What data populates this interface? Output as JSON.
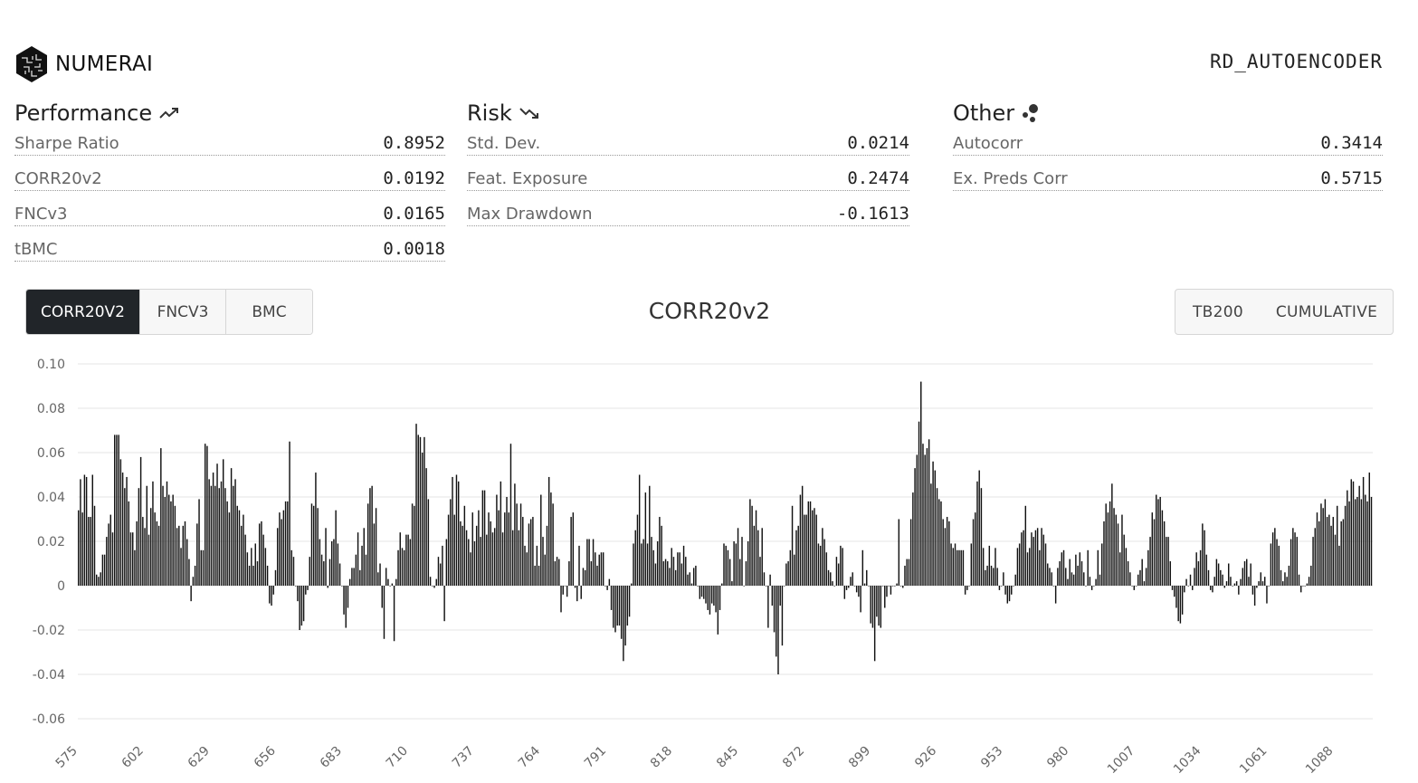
{
  "header": {
    "logo_text": "NUMERAI",
    "model_name": "RD_AUTOENCODER"
  },
  "sections": {
    "performance": {
      "title": "Performance",
      "icon": "trending-up-icon",
      "metrics": [
        {
          "label": "Sharpe Ratio",
          "value": "0.8952"
        },
        {
          "label": "CORR20v2",
          "value": "0.0192"
        },
        {
          "label": "FNCv3",
          "value": "0.0165"
        },
        {
          "label": "tBMC",
          "value": "0.0018"
        }
      ]
    },
    "risk": {
      "title": "Risk",
      "icon": "trending-down-icon",
      "metrics": [
        {
          "label": "Std. Dev.",
          "value": "0.0214"
        },
        {
          "label": "Feat. Exposure",
          "value": "0.2474"
        },
        {
          "label": "Max Drawdown",
          "value": "-0.1613"
        }
      ]
    },
    "other": {
      "title": "Other",
      "icon": "scatter-dots-icon",
      "metrics": [
        {
          "label": "Autocorr",
          "value": "0.3414"
        },
        {
          "label": "Ex. Preds Corr",
          "value": "0.5715"
        }
      ]
    }
  },
  "tabs": [
    {
      "label": "CORR20V2",
      "active": true
    },
    {
      "label": "FNCV3",
      "active": false
    },
    {
      "label": "BMC",
      "active": false
    }
  ],
  "toggles": [
    {
      "label": "TB200"
    },
    {
      "label": "CUMULATIVE"
    }
  ],
  "colors": {
    "bar": "#111111",
    "active_tab_bg": "#212529",
    "grid": "#e6e6e6"
  },
  "chart_data": {
    "type": "bar",
    "title": "CORR20v2",
    "x_start": 575,
    "x_end": 1104,
    "x_tick_labels": [
      "575",
      "602",
      "629",
      "656",
      "683",
      "710",
      "737",
      "764",
      "791",
      "818",
      "845",
      "872",
      "899",
      "926",
      "953",
      "980",
      "1007",
      "1034",
      "1061",
      "1088"
    ],
    "y_tick_labels": [
      "0.10",
      "0.08",
      "0.06",
      "0.04",
      "0.02",
      "0",
      "-0.02",
      "-0.04",
      "-0.06"
    ],
    "ylim": [
      -0.06,
      0.1
    ],
    "grid": true,
    "values": [
      0.034,
      0.048,
      0.033,
      0.05,
      0.049,
      0.031,
      0.031,
      0.05,
      0.036,
      0.005,
      0.004,
      0.006,
      0.014,
      0.014,
      0.022,
      0.028,
      0.032,
      0.024,
      0.068,
      0.068,
      0.068,
      0.057,
      0.051,
      0.044,
      0.049,
      0.038,
      0.024,
      0.024,
      0.016,
      0.029,
      0.044,
      0.058,
      0.031,
      0.026,
      0.045,
      0.023,
      0.035,
      0.047,
      0.033,
      0.029,
      0.027,
      0.062,
      0.045,
      0.04,
      0.047,
      0.041,
      0.038,
      0.041,
      0.036,
      0.026,
      0.027,
      0.017,
      0.027,
      0.029,
      0.021,
      0.012,
      -0.007,
      0.004,
      0.009,
      0.028,
      0.039,
      0.016,
      0.016,
      0.064,
      0.063,
      0.048,
      0.045,
      0.051,
      0.045,
      0.055,
      0.044,
      0.047,
      0.057,
      0.044,
      0.038,
      0.033,
      0.053,
      0.045,
      0.048,
      0.036,
      0.034,
      0.027,
      0.032,
      0.023,
      0.015,
      0.009,
      0.017,
      0.009,
      0.019,
      0.011,
      0.028,
      0.029,
      0.023,
      0.017,
      0.009,
      -0.008,
      -0.009,
      -0.004,
      0.007,
      0.026,
      0.033,
      0.03,
      0.034,
      0.038,
      0.038,
      0.065,
      0.016,
      0.013,
      0.0,
      -0.007,
      -0.02,
      -0.018,
      -0.016,
      -0.004,
      -0.002,
      0.013,
      0.037,
      0.036,
      0.051,
      0.035,
      0.021,
      0.014,
      0.011,
      0.026,
      -0.001,
      0.012,
      0.02,
      0.021,
      0.034,
      0.019,
      0.01,
      0.0,
      -0.013,
      -0.019,
      -0.01,
      0.003,
      0.008,
      0.008,
      0.014,
      0.024,
      0.007,
      0.018,
      0.026,
      0.014,
      0.037,
      0.044,
      0.045,
      0.028,
      0.035,
      0.006,
      0.01,
      -0.01,
      -0.024,
      0.008,
      0.003,
      0.0,
      0.001,
      -0.025,
      0.003,
      0.016,
      0.024,
      0.017,
      0.016,
      0.023,
      0.023,
      0.021,
      0.037,
      0.036,
      0.073,
      0.068,
      0.067,
      0.06,
      0.067,
      0.053,
      0.039,
      0.004,
      0.0,
      -0.001,
      0.003,
      0.013,
      0.01,
      0.018,
      -0.016,
      0.021,
      0.032,
      0.039,
      0.049,
      0.032,
      0.05,
      0.047,
      0.029,
      0.027,
      0.036,
      0.025,
      0.021,
      0.015,
      0.033,
      0.02,
      0.027,
      0.034,
      0.022,
      0.043,
      0.043,
      0.023,
      0.033,
      0.029,
      0.024,
      0.026,
      0.041,
      0.034,
      0.047,
      0.024,
      0.033,
      0.04,
      0.033,
      0.064,
      0.025,
      0.046,
      0.037,
      0.025,
      0.037,
      0.031,
      0.018,
      0.015,
      0.028,
      0.03,
      0.031,
      0.009,
      0.018,
      0.009,
      0.041,
      0.022,
      0.014,
      0.027,
      0.049,
      0.042,
      0.037,
      0.011,
      0.013,
      0.012,
      -0.012,
      -0.004,
      0.0,
      -0.005,
      0.011,
      0.031,
      0.033,
      -0.001,
      -0.007,
      0.018,
      -0.006,
      0.008,
      0.007,
      0.021,
      0.021,
      0.011,
      0.021,
      0.015,
      0.009,
      0.014,
      0.015,
      0.015,
      0.0,
      -0.002,
      0.003,
      -0.011,
      -0.019,
      -0.021,
      -0.018,
      -0.018,
      -0.024,
      -0.034,
      -0.027,
      -0.018,
      -0.014,
      0.001,
      0.019,
      0.025,
      0.032,
      0.05,
      0.019,
      0.021,
      0.042,
      0.019,
      0.045,
      0.022,
      0.016,
      0.01,
      0.02,
      0.031,
      0.027,
      0.011,
      0.012,
      0.011,
      0.008,
      0.017,
      0.013,
      0.007,
      0.015,
      0.015,
      0.01,
      0.018,
      0.013,
      0.005,
      0.006,
      0.001,
      0.008,
      0.009,
      0.0,
      -0.006,
      -0.005,
      -0.006,
      -0.008,
      -0.011,
      -0.013,
      -0.008,
      -0.009,
      -0.012,
      -0.022,
      -0.011,
      0.001,
      0.019,
      0.018,
      0.016,
      0.012,
      0.002,
      0.02,
      0.019,
      0.026,
      0.012,
      0.022,
      0.0,
      0.011,
      0.02,
      0.039,
      0.036,
      0.027,
      0.034,
      0.025,
      0.013,
      0.026,
      0.006,
      0.0,
      -0.019,
      0.005,
      -0.009,
      -0.021,
      -0.032,
      -0.04,
      -0.009,
      -0.027,
      0.0,
      0.01,
      0.011,
      0.016,
      0.036,
      0.014,
      0.025,
      0.027,
      0.041,
      0.045,
      0.032,
      0.032,
      0.038,
      0.038,
      0.034,
      0.035,
      0.032,
      0.019,
      0.018,
      0.026,
      0.021,
      0.015,
      0.007,
      0.006,
      0.002,
      0.0,
      0.013,
      0.01,
      0.018,
      0.017,
      -0.006,
      -0.002,
      -0.001,
      0.004,
      0.006,
      0.0,
      -0.003,
      -0.005,
      -0.012,
      0.016,
      0.001,
      0.007,
      0.0,
      -0.017,
      -0.019,
      -0.034,
      -0.014,
      -0.018,
      -0.019,
      0.0,
      -0.01,
      -0.005,
      0.0,
      -0.004,
      0.0,
      0.0,
      0.001,
      0.03,
      0.0,
      -0.001,
      0.009,
      0.012,
      0.012,
      0.03,
      0.042,
      0.053,
      0.059,
      0.074,
      0.092,
      0.064,
      0.059,
      0.062,
      0.066,
      0.046,
      0.056,
      0.052,
      0.044,
      0.039,
      0.038,
      0.03,
      0.026,
      0.031,
      0.029,
      0.019,
      0.017,
      0.019,
      0.016,
      0.016,
      0.016,
      0.016,
      -0.004,
      -0.002,
      0.0,
      0.019,
      0.03,
      0.033,
      0.047,
      0.052,
      0.044,
      0.017,
      0.007,
      0.009,
      0.018,
      0.009,
      0.008,
      0.017,
      0.008,
      -0.002,
      0.0,
      0.006,
      -0.004,
      -0.008,
      -0.007,
      -0.004,
      0.0,
      0.005,
      0.017,
      0.019,
      0.024,
      0.025,
      0.036,
      0.015,
      0.017,
      0.024,
      0.022,
      0.025,
      0.026,
      0.016,
      0.026,
      0.023,
      0.019,
      0.01,
      0.008,
      0.006,
      0.0,
      -0.008,
      0.008,
      0.011,
      0.015,
      0.016,
      0.008,
      0.003,
      0.012,
      0.006,
      0.005,
      0.014,
      0.009,
      0.015,
      0.011,
      0.006,
      0.0,
      0.016,
      0.004,
      -0.002,
      0.0,
      0.003,
      0.016,
      0.005,
      0.019,
      0.029,
      0.037,
      0.033,
      0.038,
      0.046,
      0.035,
      0.032,
      0.028,
      0.015,
      0.032,
      0.023,
      0.017,
      0.011,
      0.006,
      0.0,
      -0.002,
      0.0,
      0.005,
      0.007,
      0.012,
      0.002,
      0.008,
      0.016,
      0.022,
      0.033,
      0.03,
      0.041,
      0.039,
      0.04,
      0.034,
      0.029,
      0.022,
      0.022,
      0.011,
      -0.002,
      -0.005,
      -0.01,
      -0.016,
      -0.017,
      -0.013,
      -0.003,
      0.003,
      0.0,
      0.005,
      -0.002,
      0.008,
      0.015,
      0.011,
      0.016,
      0.028,
      0.025,
      0.014,
      0.007,
      -0.002,
      -0.003,
      0.004,
      0.012,
      0.01,
      0.007,
      0.005,
      -0.001,
      0.002,
      0.01,
      0.004,
      0.0,
      0.001,
      0.002,
      -0.004,
      0.003,
      0.008,
      0.011,
      0.012,
      0.004,
      0.01,
      -0.004,
      -0.009,
      -0.001,
      0.002,
      0.006,
      0.002,
      0.004,
      -0.008,
      0.0,
      0.019,
      0.024,
      0.026,
      0.021,
      0.018,
      0.007,
      0.002,
      0.006,
      0.004,
      0.009,
      0.021,
      0.026,
      0.024,
      0.022,
      0.005,
      -0.003,
      0.0,
      0.0,
      0.001,
      0.004,
      0.009,
      0.022,
      0.026,
      0.033,
      0.029,
      0.037,
      0.035,
      0.039,
      0.031,
      0.032,
      0.027,
      0.031,
      0.023,
      0.036,
      0.018,
      0.029,
      0.03,
      0.036,
      0.043,
      0.038,
      0.048,
      0.047,
      0.039,
      0.04,
      0.045,
      0.039,
      0.049,
      0.041,
      0.038,
      0.051,
      0.04
    ],
    "xlabel": "",
    "ylabel": ""
  }
}
